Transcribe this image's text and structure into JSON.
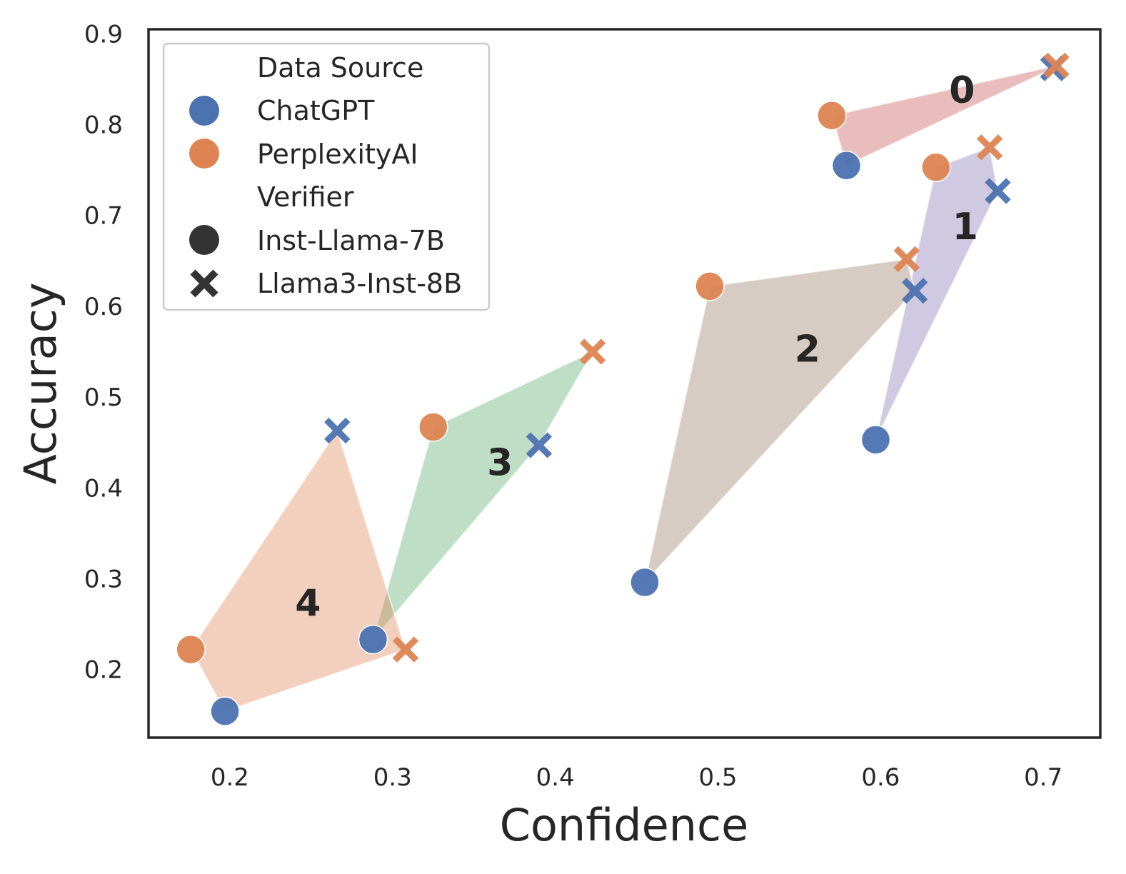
{
  "chart_data": {
    "type": "scatter",
    "xlabel": "Confidence",
    "ylabel": "Accuracy",
    "xlim": [
      0.15,
      0.735
    ],
    "ylim": [
      0.125,
      0.905
    ],
    "xticks": [
      "0.2",
      "0.3",
      "0.4",
      "0.5",
      "0.6",
      "0.7"
    ],
    "yticks": [
      "0.2",
      "0.3",
      "0.4",
      "0.5",
      "0.6",
      "0.7",
      "0.8",
      "0.9"
    ],
    "legend": {
      "position": "top-left",
      "hue_title": "Data Source",
      "style_title": "Verifier",
      "hue_entries": [
        {
          "label": "ChatGPT",
          "color": "#4c72b0"
        },
        {
          "label": "PerplexityAI",
          "color": "#dd8452"
        }
      ],
      "style_entries": [
        {
          "label": "Inst-Llama-7B",
          "marker": "circle"
        },
        {
          "label": "Llama3-Inst-8B",
          "marker": "x"
        }
      ]
    },
    "clusters": [
      {
        "label": "0",
        "color": "#c44e52",
        "label_pos": [
          0.65,
          0.835
        ],
        "points": [
          {
            "x": 0.57,
            "y": 0.81,
            "source": "PerplexityAI",
            "verifier": "Inst-Llama-7B"
          },
          {
            "x": 0.579,
            "y": 0.755,
            "source": "ChatGPT",
            "verifier": "Inst-Llama-7B"
          },
          {
            "x": 0.706,
            "y": 0.862,
            "source": "ChatGPT",
            "verifier": "Llama3-Inst-8B"
          },
          {
            "x": 0.708,
            "y": 0.865,
            "source": "PerplexityAI",
            "verifier": "Llama3-Inst-8B"
          }
        ]
      },
      {
        "label": "1",
        "color": "#8172b3",
        "label_pos": [
          0.652,
          0.685
        ],
        "points": [
          {
            "x": 0.634,
            "y": 0.753,
            "source": "PerplexityAI",
            "verifier": "Inst-Llama-7B"
          },
          {
            "x": 0.597,
            "y": 0.453,
            "source": "ChatGPT",
            "verifier": "Inst-Llama-7B"
          },
          {
            "x": 0.667,
            "y": 0.775,
            "source": "PerplexityAI",
            "verifier": "Llama3-Inst-8B"
          },
          {
            "x": 0.672,
            "y": 0.727,
            "source": "ChatGPT",
            "verifier": "Llama3-Inst-8B"
          }
        ]
      },
      {
        "label": "2",
        "color": "#937860",
        "label_pos": [
          0.555,
          0.55
        ],
        "points": [
          {
            "x": 0.495,
            "y": 0.622,
            "source": "PerplexityAI",
            "verifier": "Inst-Llama-7B"
          },
          {
            "x": 0.455,
            "y": 0.296,
            "source": "ChatGPT",
            "verifier": "Inst-Llama-7B"
          },
          {
            "x": 0.616,
            "y": 0.652,
            "source": "PerplexityAI",
            "verifier": "Llama3-Inst-8B"
          },
          {
            "x": 0.621,
            "y": 0.617,
            "source": "ChatGPT",
            "verifier": "Llama3-Inst-8B"
          }
        ]
      },
      {
        "label": "3",
        "color": "#55a868",
        "label_pos": [
          0.366,
          0.425
        ],
        "points": [
          {
            "x": 0.325,
            "y": 0.467,
            "source": "PerplexityAI",
            "verifier": "Inst-Llama-7B"
          },
          {
            "x": 0.288,
            "y": 0.233,
            "source": "ChatGPT",
            "verifier": "Inst-Llama-7B"
          },
          {
            "x": 0.423,
            "y": 0.55,
            "source": "PerplexityAI",
            "verifier": "Llama3-Inst-8B"
          },
          {
            "x": 0.39,
            "y": 0.447,
            "source": "ChatGPT",
            "verifier": "Llama3-Inst-8B"
          }
        ]
      },
      {
        "label": "4",
        "color": "#dd8452",
        "label_pos": [
          0.248,
          0.27
        ],
        "points": [
          {
            "x": 0.176,
            "y": 0.222,
            "source": "PerplexityAI",
            "verifier": "Inst-Llama-7B"
          },
          {
            "x": 0.197,
            "y": 0.154,
            "source": "ChatGPT",
            "verifier": "Inst-Llama-7B"
          },
          {
            "x": 0.308,
            "y": 0.222,
            "source": "PerplexityAI",
            "verifier": "Llama3-Inst-8B"
          },
          {
            "x": 0.266,
            "y": 0.463,
            "source": "ChatGPT",
            "verifier": "Llama3-Inst-8B"
          }
        ]
      }
    ]
  }
}
